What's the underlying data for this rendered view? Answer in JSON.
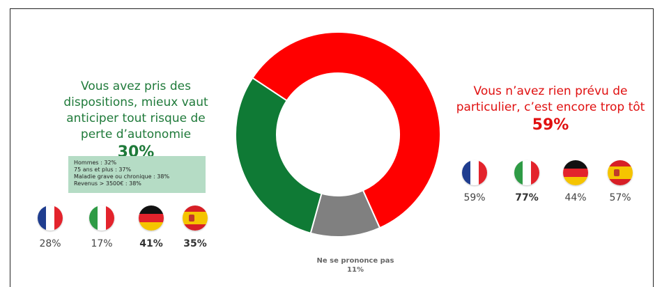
{
  "chart_data": {
    "type": "pie",
    "donut": true,
    "slices": [
      {
        "label": "Vous n’avez rien prévu de particulier, c’est encore trop tôt",
        "value": 59,
        "color": "#ff0000"
      },
      {
        "label": "Ne se prononce pas",
        "value": 11,
        "color": "#808080"
      },
      {
        "label": "Vous avez pris des dispositions, mieux vaut anticiper tout risque de perte d’autonomie",
        "value": 30,
        "color": "#0f7a35"
      }
    ]
  },
  "left": {
    "title_lines": [
      "Vous avez pris des",
      "dispositions, mieux vaut",
      "anticiper tout risque de",
      "perte d’autonomie"
    ],
    "pct": "30%",
    "stats": [
      "Hommes : 32%",
      "75 ans et plus : 37%",
      "Maladie grave ou chronique : 38%",
      "Revenus > 3500€ : 38%"
    ],
    "flags": [
      {
        "country": "france",
        "value": "28%",
        "bold": false
      },
      {
        "country": "italy",
        "value": "17%",
        "bold": false
      },
      {
        "country": "germany",
        "value": "41%",
        "bold": true
      },
      {
        "country": "spain",
        "value": "35%",
        "bold": true
      }
    ]
  },
  "right": {
    "title_lines": [
      "Vous n’avez rien prévu de",
      "particulier, c’est encore trop tôt"
    ],
    "pct": "59%",
    "flags": [
      {
        "country": "france",
        "value": "59%",
        "bold": false
      },
      {
        "country": "italy",
        "value": "77%",
        "bold": true
      },
      {
        "country": "germany",
        "value": "44%",
        "bold": false
      },
      {
        "country": "spain",
        "value": "57%",
        "bold": false
      }
    ]
  },
  "npp": {
    "label": "Ne se prononce pas",
    "pct": "11%"
  }
}
